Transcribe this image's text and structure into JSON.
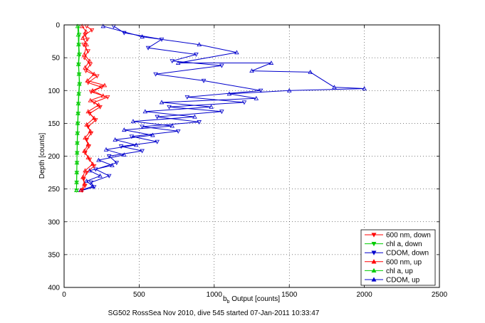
{
  "chart_data": {
    "type": "scatter",
    "title": "",
    "xlabel_main": "b",
    "xlabel_sub": "b",
    "xlabel_rest": " Output [counts]",
    "ylabel": "Depth [counts]",
    "caption": "SG502 RossSea Nov 2010, dive 545 started 07-Jan-2011 10:33:47",
    "xlim": [
      0,
      2500
    ],
    "ylim": [
      0,
      400
    ],
    "y_reversed": true,
    "grid": true,
    "legend_position": "bottom-right",
    "x_ticks": [
      "0",
      "500",
      "1000",
      "1500",
      "2000",
      "2500"
    ],
    "y_ticks": [
      "0",
      "50",
      "100",
      "150",
      "200",
      "250",
      "300",
      "350",
      "400"
    ],
    "series": [
      {
        "name": "600 nm, down",
        "color": "#ff0000",
        "marker": "triangle-down",
        "points": [
          [
            150,
            2
          ],
          [
            185,
            8
          ],
          [
            140,
            15
          ],
          [
            155,
            22
          ],
          [
            130,
            30
          ],
          [
            160,
            40
          ],
          [
            135,
            50
          ],
          [
            175,
            60
          ],
          [
            145,
            70
          ],
          [
            220,
            78
          ],
          [
            160,
            88
          ],
          [
            250,
            95
          ],
          [
            180,
            102
          ],
          [
            290,
            110
          ],
          [
            200,
            118
          ],
          [
            240,
            125
          ],
          [
            170,
            135
          ],
          [
            210,
            145
          ],
          [
            160,
            155
          ],
          [
            180,
            165
          ],
          [
            150,
            175
          ],
          [
            165,
            185
          ],
          [
            140,
            195
          ],
          [
            170,
            205
          ],
          [
            200,
            215
          ],
          [
            150,
            225
          ],
          [
            130,
            235
          ],
          [
            140,
            245
          ],
          [
            120,
            252
          ]
        ]
      },
      {
        "name": "chl a, down",
        "color": "#00cc00",
        "marker": "triangle-down",
        "points": [
          [
            95,
            2
          ],
          [
            100,
            15
          ],
          [
            98,
            30
          ],
          [
            102,
            45
          ],
          [
            97,
            60
          ],
          [
            100,
            75
          ],
          [
            104,
            90
          ],
          [
            99,
            105
          ],
          [
            96,
            120
          ],
          [
            94,
            135
          ],
          [
            92,
            150
          ],
          [
            90,
            165
          ],
          [
            88,
            180
          ],
          [
            87,
            195
          ],
          [
            86,
            210
          ],
          [
            85,
            225
          ],
          [
            84,
            240
          ],
          [
            83,
            252
          ]
        ]
      },
      {
        "name": "CDOM, down",
        "color": "#0000cc",
        "marker": "triangle-down",
        "points": [
          [
            330,
            2
          ],
          [
            400,
            12
          ],
          [
            650,
            22
          ],
          [
            560,
            35
          ],
          [
            880,
            45
          ],
          [
            720,
            55
          ],
          [
            1050,
            62
          ],
          [
            610,
            75
          ],
          [
            930,
            85
          ],
          [
            1310,
            100
          ],
          [
            820,
            110
          ],
          [
            1200,
            118
          ],
          [
            700,
            125
          ],
          [
            1050,
            132
          ],
          [
            620,
            140
          ],
          [
            900,
            148
          ],
          [
            520,
            155
          ],
          [
            760,
            162
          ],
          [
            450,
            170
          ],
          [
            620,
            178
          ],
          [
            380,
            185
          ],
          [
            520,
            192
          ],
          [
            300,
            200
          ],
          [
            350,
            210
          ],
          [
            210,
            220
          ],
          [
            300,
            230
          ],
          [
            180,
            240
          ],
          [
            200,
            247
          ],
          [
            120,
            252
          ]
        ]
      },
      {
        "name": "600 nm, up",
        "color": "#ff0000",
        "marker": "triangle-up",
        "points": [
          [
            120,
            2
          ],
          [
            145,
            10
          ],
          [
            125,
            20
          ],
          [
            150,
            30
          ],
          [
            135,
            45
          ],
          [
            170,
            55
          ],
          [
            140,
            65
          ],
          [
            200,
            75
          ],
          [
            155,
            85
          ],
          [
            270,
            92
          ],
          [
            190,
            100
          ],
          [
            260,
            108
          ],
          [
            175,
            115
          ],
          [
            230,
            122
          ],
          [
            160,
            132
          ],
          [
            200,
            142
          ],
          [
            150,
            152
          ],
          [
            175,
            162
          ],
          [
            140,
            172
          ],
          [
            160,
            182
          ],
          [
            135,
            192
          ],
          [
            160,
            202
          ],
          [
            190,
            212
          ],
          [
            140,
            222
          ],
          [
            125,
            232
          ],
          [
            135,
            242
          ],
          [
            115,
            252
          ]
        ]
      },
      {
        "name": "chl a, up",
        "color": "#00cc00",
        "marker": "triangle-up",
        "points": [
          [
            90,
            2
          ],
          [
            94,
            15
          ],
          [
            96,
            30
          ],
          [
            98,
            45
          ],
          [
            95,
            60
          ],
          [
            99,
            75
          ],
          [
            101,
            90
          ],
          [
            97,
            105
          ],
          [
            94,
            120
          ],
          [
            92,
            135
          ],
          [
            90,
            150
          ],
          [
            88,
            165
          ],
          [
            87,
            180
          ],
          [
            86,
            195
          ],
          [
            85,
            210
          ],
          [
            84,
            225
          ],
          [
            83,
            240
          ],
          [
            82,
            252
          ]
        ]
      },
      {
        "name": "CDOM, up",
        "color": "#0000cc",
        "marker": "triangle-up",
        "points": [
          [
            260,
            2
          ],
          [
            520,
            18
          ],
          [
            900,
            30
          ],
          [
            1150,
            42
          ],
          [
            760,
            58
          ],
          [
            1380,
            58
          ],
          [
            1250,
            70
          ],
          [
            1640,
            72
          ],
          [
            1800,
            95
          ],
          [
            2000,
            97
          ],
          [
            1500,
            100
          ],
          [
            1100,
            105
          ],
          [
            1280,
            112
          ],
          [
            650,
            118
          ],
          [
            980,
            125
          ],
          [
            540,
            132
          ],
          [
            870,
            140
          ],
          [
            460,
            147
          ],
          [
            720,
            154
          ],
          [
            400,
            160
          ],
          [
            590,
            168
          ],
          [
            340,
            175
          ],
          [
            480,
            183
          ],
          [
            280,
            190
          ],
          [
            400,
            198
          ],
          [
            230,
            206
          ],
          [
            320,
            214
          ],
          [
            170,
            222
          ],
          [
            240,
            230
          ],
          [
            150,
            238
          ],
          [
            190,
            246
          ],
          [
            110,
            252
          ]
        ]
      }
    ]
  }
}
